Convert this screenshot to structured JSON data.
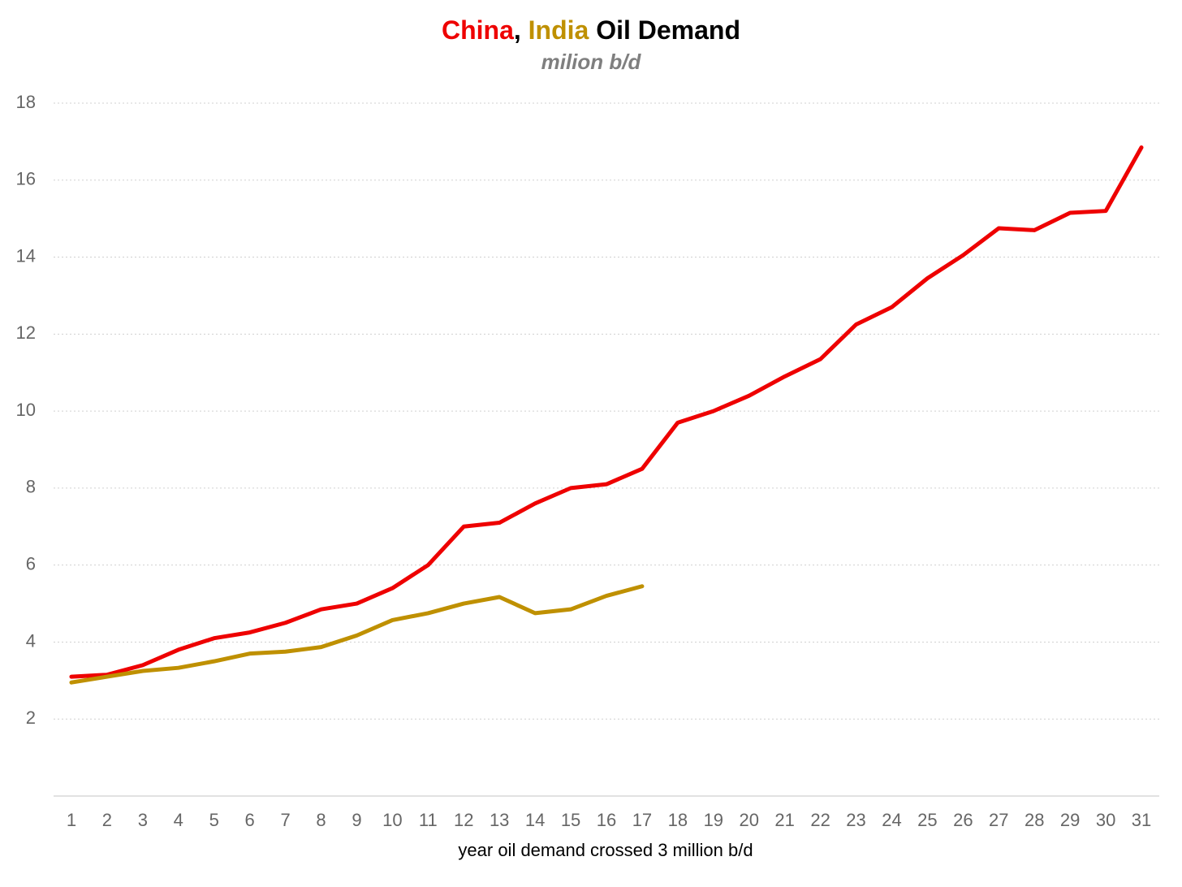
{
  "chart_data": {
    "type": "line",
    "title": [
      {
        "text": "China",
        "color": "#ee0000"
      },
      {
        "text": ", ",
        "color": "#000000"
      },
      {
        "text": "India",
        "color": "#bf9000"
      },
      {
        "text": " Oil Demand",
        "color": "#000000"
      }
    ],
    "subtitle": "milion b/d",
    "x_label": "year oil demand crossed 3 million b/d",
    "categories": [
      1,
      2,
      3,
      4,
      5,
      6,
      7,
      8,
      9,
      10,
      11,
      12,
      13,
      14,
      15,
      16,
      17,
      18,
      19,
      20,
      21,
      22,
      23,
      24,
      25,
      26,
      27,
      28,
      29,
      30,
      31
    ],
    "series": [
      {
        "name": "China",
        "color": "#ee0000",
        "values": [
          3.1,
          3.15,
          3.4,
          3.8,
          4.1,
          4.25,
          4.5,
          4.85,
          5.0,
          5.4,
          6.0,
          7.0,
          7.1,
          7.6,
          8.0,
          8.1,
          8.5,
          9.7,
          10.0,
          10.4,
          10.9,
          11.35,
          12.25,
          12.7,
          13.45,
          14.05,
          14.75,
          14.7,
          15.15,
          15.2,
          16.85
        ]
      },
      {
        "name": "India",
        "color": "#bf9000",
        "values": [
          2.95,
          3.1,
          3.25,
          3.33,
          3.5,
          3.7,
          3.75,
          3.87,
          4.17,
          4.57,
          4.75,
          5.0,
          5.17,
          4.75,
          4.85,
          5.2,
          5.45,
          null,
          null,
          null,
          null,
          null,
          null,
          null,
          null,
          null,
          null,
          null,
          null,
          null,
          null
        ]
      }
    ],
    "ylim": [
      0,
      18
    ],
    "yticks": [
      2,
      4,
      6,
      8,
      10,
      12,
      14,
      16,
      18
    ],
    "grid": true
  }
}
